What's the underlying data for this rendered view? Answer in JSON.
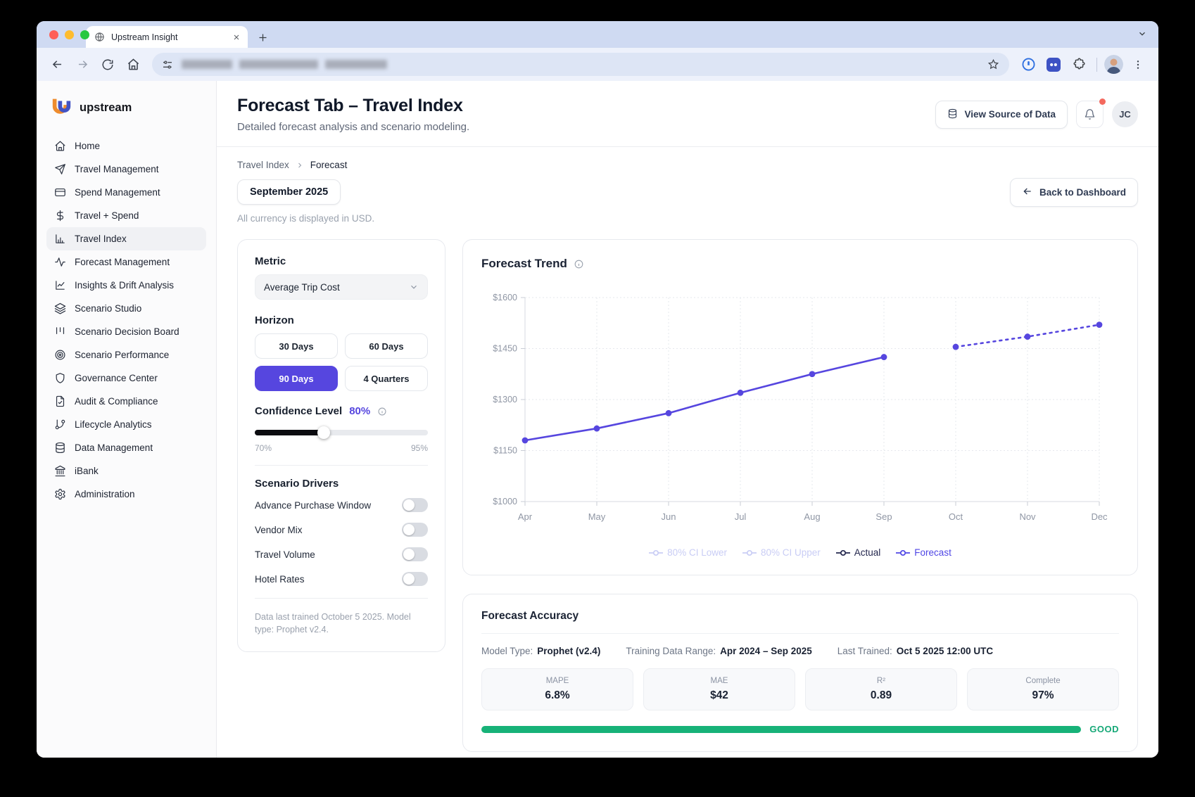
{
  "browser": {
    "tab_title": "Upstream Insight"
  },
  "sidebar": {
    "brand": "upstream",
    "items": [
      {
        "label": "Home",
        "icon": "home-icon",
        "active": false
      },
      {
        "label": "Travel Management",
        "icon": "plane-icon",
        "active": false
      },
      {
        "label": "Spend Management",
        "icon": "credit-card-icon",
        "active": false
      },
      {
        "label": "Travel + Spend",
        "icon": "dollar-icon",
        "active": false
      },
      {
        "label": "Travel Index",
        "icon": "bar-chart-icon",
        "active": true
      },
      {
        "label": "Forecast Management",
        "icon": "activity-icon",
        "active": false
      },
      {
        "label": "Insights & Drift Analysis",
        "icon": "line-chart-icon",
        "active": false
      },
      {
        "label": "Scenario Studio",
        "icon": "layers-icon",
        "active": false
      },
      {
        "label": "Scenario Decision Board",
        "icon": "kanban-icon",
        "active": false
      },
      {
        "label": "Scenario Performance",
        "icon": "target-icon",
        "active": false
      },
      {
        "label": "Governance Center",
        "icon": "shield-icon",
        "active": false
      },
      {
        "label": "Audit & Compliance",
        "icon": "file-check-icon",
        "active": false
      },
      {
        "label": "Lifecycle Analytics",
        "icon": "git-branch-icon",
        "active": false
      },
      {
        "label": "Data Management",
        "icon": "database-icon",
        "active": false
      },
      {
        "label": "iBank",
        "icon": "bank-icon",
        "active": false
      },
      {
        "label": "Administration",
        "icon": "gear-icon",
        "active": false
      }
    ]
  },
  "header": {
    "title": "Forecast Tab – Travel Index",
    "subtitle": "Detailed forecast analysis and scenario modeling.",
    "view_source_label": "View Source of Data",
    "avatar_initials": "JC"
  },
  "subheader": {
    "breadcrumb": [
      "Travel Index",
      "Forecast"
    ],
    "period_chip": "September 2025",
    "currency_note": "All currency is displayed in USD.",
    "back_button_label": "Back to Dashboard"
  },
  "controls": {
    "metric_label": "Metric",
    "metric_value": "Average Trip Cost",
    "horizon_label": "Horizon",
    "horizon_options": [
      {
        "label": "30 Days",
        "selected": false
      },
      {
        "label": "60 Days",
        "selected": false
      },
      {
        "label": "90 Days",
        "selected": true
      },
      {
        "label": "4 Quarters",
        "selected": false
      }
    ],
    "confidence_label": "Confidence Level",
    "confidence_value": "80%",
    "confidence_min": "70%",
    "confidence_max": "95%",
    "confidence_fill_pct": 40,
    "drivers_label": "Scenario Drivers",
    "drivers": [
      {
        "label": "Advance Purchase Window",
        "on": false
      },
      {
        "label": "Vendor Mix",
        "on": false
      },
      {
        "label": "Travel Volume",
        "on": false
      },
      {
        "label": "Hotel Rates",
        "on": false
      }
    ],
    "footnote": "Data last trained October 5 2025. Model type: Prophet v2.4."
  },
  "chart_card": {
    "title": "Forecast Trend"
  },
  "chart_data": {
    "type": "line",
    "title": "Forecast Trend",
    "x": [
      "Apr",
      "May",
      "Jun",
      "Jul",
      "Aug",
      "Sep",
      "Oct",
      "Nov",
      "Dec"
    ],
    "series": [
      {
        "name": "Actual",
        "style": "solid",
        "color": "#5646df",
        "values": [
          1180,
          1215,
          1260,
          1320,
          1375,
          1425,
          null,
          null,
          null
        ]
      },
      {
        "name": "Forecast",
        "style": "dotted",
        "color": "#5646df",
        "values": [
          null,
          null,
          null,
          null,
          null,
          null,
          1455,
          1485,
          1520
        ]
      }
    ],
    "y_prefix": "$",
    "yticks": [
      1000,
      1150,
      1300,
      1450,
      1600
    ],
    "ylim": [
      1000,
      1600
    ],
    "grid": "dashed",
    "legend_position": "bottom",
    "legend": [
      {
        "label": "80% CI Lower",
        "color": "#c9cdf5",
        "muted": true
      },
      {
        "label": "80% CI Upper",
        "color": "#c9cdf5",
        "muted": true
      },
      {
        "label": "Actual",
        "color": "#23264d",
        "muted": false
      },
      {
        "label": "Forecast",
        "color": "#4f46e5",
        "muted": false
      }
    ]
  },
  "accuracy": {
    "title": "Forecast Accuracy",
    "meta": [
      {
        "label": "Model Type:",
        "value": "Prophet (v2.4)"
      },
      {
        "label": "Training Data Range:",
        "value": "Apr 2024 – Sep 2025"
      },
      {
        "label": "Last Trained:",
        "value": "Oct 5 2025 12:00 UTC"
      }
    ],
    "metrics": [
      {
        "label": "MAPE",
        "value": "6.8%"
      },
      {
        "label": "MAE",
        "value": "$42"
      },
      {
        "label": "R²",
        "value": "0.89"
      },
      {
        "label": "Complete",
        "value": "97%"
      }
    ],
    "status_label": "GOOD",
    "status_color": "#16a877",
    "bar_color": "#17b278"
  }
}
